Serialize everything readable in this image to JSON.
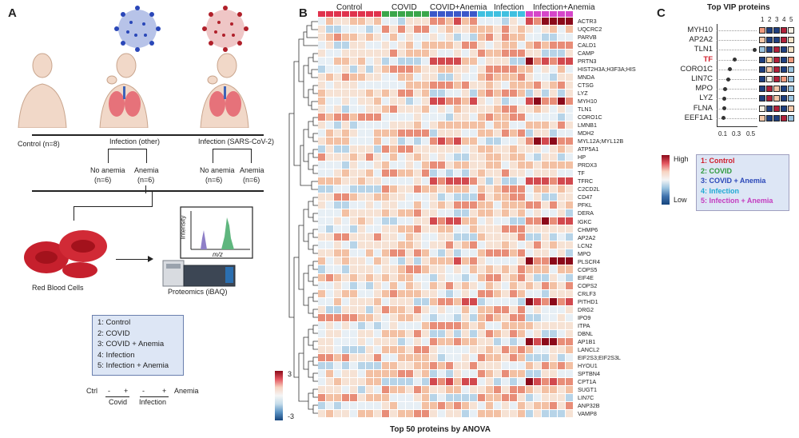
{
  "panel_a": {
    "letter": "A",
    "control_label": "Control (n=8)",
    "infection_other_label": "Infection (other)",
    "infection_sars_label": "Infection (SARS-CoV-2)",
    "no_anemia": "No anemia",
    "anemia": "Anemia",
    "n6": "(n=6)",
    "rbc_label": "Red Blood Cells",
    "proteomics_label": "Proteomics (iBAQ)",
    "intensity_label": "Intensity",
    "mz_label": "m/z",
    "groups": [
      "1: Control",
      "2: COVID",
      "3: COVID + Anemia",
      "4: Infection",
      "5: Infection + Anemia"
    ],
    "design_rows": {
      "ctrl": "Ctrl",
      "signs": [
        "-",
        "+",
        "-",
        "+"
      ],
      "anemia": "Anemia",
      "covid": "Covid",
      "infection": "Infection"
    }
  },
  "panel_b": {
    "letter": "B",
    "group_headers": [
      "Control",
      "COVID",
      "COVID+Anemia",
      "Infection",
      "Infection+Anemia"
    ],
    "group_colors": [
      "#e0334d",
      "#3aa64a",
      "#3b58c9",
      "#3fc0e0",
      "#d646c9"
    ],
    "title": "Top 50 proteins by ANOVA",
    "scale_max": "3",
    "scale_min": "-3",
    "proteins": [
      "ACTR3",
      "UQCRC2",
      "PARVB",
      "CALD1",
      "CAMP",
      "PRTN3",
      "HIST2H3A;H3F3A;HIS",
      "MNDA",
      "CTSG",
      "LYZ",
      "MYH10",
      "TLN1",
      "CORO1C",
      "LMNB1",
      "MDH2",
      "MYL12A;MYL12B",
      "ATP5A1",
      "HP",
      "PRDX3",
      "TF",
      "TFRC",
      "C2CD2L",
      "CD47",
      "PFKL",
      "DERA",
      "IGKC",
      "CHMP6",
      "AP2A2",
      "LCN2",
      "MPO",
      "PLSCR4",
      "COPS5",
      "EIF4E",
      "COPS2",
      "CRLF3",
      "PITHD1",
      "DRG2",
      "IPO9",
      "ITPA",
      "DBNL",
      "AP1B1",
      "LANCL2",
      "EIF2S3;EIF2S3L",
      "HYOU1",
      "SPTBN4",
      "CPT1A",
      "SUGT1",
      "LIN7C",
      "ANP32B",
      "VAMP8"
    ]
  },
  "panel_c": {
    "letter": "C",
    "title": "Top VIP proteins",
    "col_numbers": [
      "1",
      "2",
      "3",
      "4",
      "5"
    ],
    "ticks": [
      "0.1",
      "0.3",
      "0.5"
    ],
    "high": "High",
    "low": "Low",
    "proteins": [
      {
        "name": "MYH10",
        "vip": 0.57,
        "highlight": false,
        "levels": [
          "#ef9a7e",
          "#1f3f7f",
          "#1f3f7f",
          "#b0203a",
          "#f6f0e4"
        ]
      },
      {
        "name": "AP2A2",
        "vip": 0.55,
        "highlight": false,
        "levels": [
          "#f2c7a9",
          "#1f3f7f",
          "#1f3f7f",
          "#b0203a",
          "#f3e2c6"
        ]
      },
      {
        "name": "TLN1",
        "vip": 0.47,
        "highlight": false,
        "levels": [
          "#9bc4e0",
          "#1f3f7f",
          "#b0203a",
          "#1f3f7f",
          "#f3e2c6"
        ]
      },
      {
        "name": "TF",
        "vip": 0.22,
        "highlight": true,
        "levels": [
          "#1f3f7f",
          "#f6d0a0",
          "#b0203a",
          "#1f3f7f",
          "#ef9a7e"
        ]
      },
      {
        "name": "CORO1C",
        "vip": 0.16,
        "highlight": false,
        "levels": [
          "#1f3f7f",
          "#f2c7a9",
          "#b0203a",
          "#1f3f7f",
          "#9bc4e0"
        ]
      },
      {
        "name": "LIN7C",
        "vip": 0.14,
        "highlight": false,
        "levels": [
          "#1f3f7f",
          "#f6f0e4",
          "#b0203a",
          "#ef9a7e",
          "#9bc4e0"
        ]
      },
      {
        "name": "MPO",
        "vip": 0.1,
        "highlight": false,
        "levels": [
          "#1f3f7f",
          "#b0203a",
          "#f2c7a9",
          "#1f3f7f",
          "#9bc4e0"
        ]
      },
      {
        "name": "LYZ",
        "vip": 0.09,
        "highlight": false,
        "levels": [
          "#1f3f7f",
          "#b0203a",
          "#f2c7a9",
          "#1f3f7f",
          "#9bc4e0"
        ]
      },
      {
        "name": "FLNA",
        "vip": 0.09,
        "highlight": false,
        "levels": [
          "#f6f0e4",
          "#1f3f7f",
          "#b0203a",
          "#1f3f7f",
          "#f2c7a9"
        ]
      },
      {
        "name": "EEF1A1",
        "vip": 0.08,
        "highlight": false,
        "levels": [
          "#f2c7a9",
          "#1f3f7f",
          "#1f3f7f",
          "#b0203a",
          "#9bc4e0"
        ]
      }
    ],
    "groups": [
      {
        "label": "1: Control",
        "color": "#d0202e"
      },
      {
        "label": "2: COVID",
        "color": "#2f9a3e"
      },
      {
        "label": "3: COVID + Anemia",
        "color": "#2a47b8"
      },
      {
        "label": "4: Infection",
        "color": "#20a9d4"
      },
      {
        "label": "5: Infection + Anemia",
        "color": "#c43cbf"
      }
    ]
  }
}
